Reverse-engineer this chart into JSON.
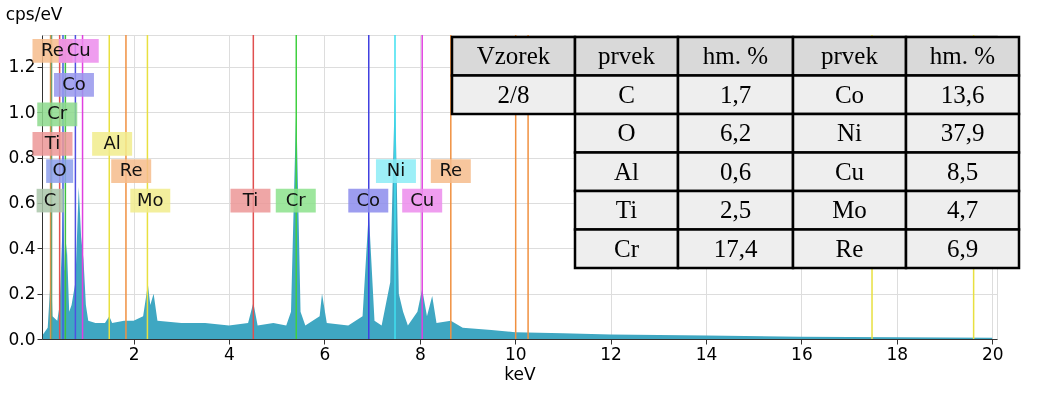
{
  "chart_data": {
    "type": "area",
    "xlabel": "keV",
    "ylabel": "cps/eV",
    "xlim": [
      0.08,
      20.1
    ],
    "ylim": [
      0,
      1.34
    ],
    "xticks": [
      2,
      4,
      6,
      8,
      10,
      12,
      14,
      16,
      18,
      20
    ],
    "yticks": [
      {
        "value": 0,
        "label": "0.0"
      },
      0.2,
      0.4,
      0.6,
      0.8,
      {
        "value": 1,
        "label": "1.0"
      },
      1.2
    ],
    "grid": true,
    "series": [
      {
        "color": "#3fa7c2",
        "x": [
          0.1,
          0.2,
          0.27,
          0.3,
          0.4,
          0.45,
          0.52,
          0.56,
          0.6,
          0.65,
          0.7,
          0.78,
          0.85,
          0.9,
          0.95,
          1.0,
          1.05,
          1.2,
          1.4,
          1.49,
          1.55,
          1.8,
          2.0,
          2.2,
          2.3,
          2.35,
          2.42,
          2.5,
          3.0,
          3.5,
          4.0,
          4.4,
          4.51,
          4.6,
          4.93,
          5.2,
          5.3,
          5.41,
          5.5,
          5.6,
          5.9,
          5.95,
          6.05,
          6.5,
          6.8,
          6.93,
          7.05,
          7.2,
          7.38,
          7.48,
          7.56,
          7.65,
          7.75,
          7.95,
          8.05,
          8.15,
          8.26,
          8.35,
          8.65,
          8.9,
          9.5,
          10,
          11,
          12,
          14,
          16,
          18,
          20
        ],
        "values": [
          0.02,
          0.05,
          0.3,
          0.1,
          0.08,
          0.15,
          0.55,
          0.3,
          0.42,
          0.12,
          0.15,
          0.25,
          0.67,
          0.45,
          0.35,
          0.15,
          0.08,
          0.07,
          0.07,
          0.1,
          0.07,
          0.08,
          0.08,
          0.1,
          0.24,
          0.15,
          0.2,
          0.08,
          0.07,
          0.07,
          0.06,
          0.07,
          0.16,
          0.06,
          0.07,
          0.06,
          0.12,
          1.03,
          0.12,
          0.06,
          0.1,
          0.2,
          0.07,
          0.06,
          0.1,
          0.56,
          0.08,
          0.06,
          0.25,
          1.12,
          0.2,
          0.12,
          0.06,
          0.12,
          0.22,
          0.1,
          0.19,
          0.07,
          0.08,
          0.05,
          0.04,
          0.03,
          0.025,
          0.02,
          0.015,
          0.01,
          0.008,
          0.005
        ]
      }
    ],
    "ref_lines": [
      {
        "axis": "x",
        "value": 0.26,
        "color": "#f09040"
      },
      {
        "axis": "x",
        "value": 0.93,
        "color": "#e040e0"
      },
      {
        "axis": "x",
        "value": 0.78,
        "color": "#5050e0"
      },
      {
        "axis": "x",
        "value": 0.57,
        "color": "#40c040"
      },
      {
        "axis": "x",
        "value": 0.45,
        "color": "#e05050"
      },
      {
        "axis": "x",
        "value": 0.52,
        "color": "#4060e0"
      },
      {
        "axis": "x",
        "value": 0.28,
        "color": "#70a070"
      },
      {
        "axis": "x",
        "value": 1.49,
        "color": "#e8e040"
      },
      {
        "axis": "x",
        "value": 1.84,
        "color": "#f09040"
      },
      {
        "axis": "x",
        "value": 2.29,
        "color": "#e8e040"
      },
      {
        "axis": "x",
        "value": 4.51,
        "color": "#e05050"
      },
      {
        "axis": "x",
        "value": 5.41,
        "color": "#40d040"
      },
      {
        "axis": "x",
        "value": 6.93,
        "color": "#4040e0"
      },
      {
        "axis": "x",
        "value": 7.48,
        "color": "#40e0f0"
      },
      {
        "axis": "x",
        "value": 8.05,
        "color": "#e040e0"
      },
      {
        "axis": "x",
        "value": 8.65,
        "color": "#f09040"
      },
      {
        "axis": "x",
        "value": 10.01,
        "color": "#f09040"
      },
      {
        "axis": "x",
        "value": 10.27,
        "color": "#f09040"
      },
      {
        "axis": "x",
        "value": 17.48,
        "color": "#e8e040"
      },
      {
        "axis": "x",
        "value": 19.61,
        "color": "#e8e040"
      }
    ],
    "annotations": [
      {
        "text": "Re",
        "x": 0.3,
        "y": 1.27
      },
      {
        "text": "Cu",
        "x": 0.85,
        "y": 1.27
      },
      {
        "text": "Co",
        "x": 0.75,
        "y": 1.12
      },
      {
        "text": "Cr",
        "x": 0.4,
        "y": 0.99
      },
      {
        "text": "Ti",
        "x": 0.3,
        "y": 0.86
      },
      {
        "text": "O",
        "x": 0.45,
        "y": 0.74
      },
      {
        "text": "C",
        "x": 0.25,
        "y": 0.61
      },
      {
        "text": "Al",
        "x": 1.55,
        "y": 0.86
      },
      {
        "text": "Re",
        "x": 1.95,
        "y": 0.74
      },
      {
        "text": "Mo",
        "x": 2.35,
        "y": 0.61
      },
      {
        "text": "Ti",
        "x": 4.45,
        "y": 0.61
      },
      {
        "text": "Cr",
        "x": 5.4,
        "y": 0.61
      },
      {
        "text": "Co",
        "x": 6.92,
        "y": 0.61
      },
      {
        "text": "Ni",
        "x": 7.5,
        "y": 0.74
      },
      {
        "text": "Cu",
        "x": 8.05,
        "y": 0.61
      },
      {
        "text": "Re",
        "x": 8.65,
        "y": 0.74
      },
      "Vzorek",
      "prvek",
      "hm. %",
      "prvek",
      "hm. %",
      "2/8",
      "C",
      "1,7",
      "Co",
      "13,6",
      "O",
      "6,2",
      "Ni",
      "37,9",
      "Al",
      "0,6",
      "Cu",
      "8,5",
      "Ti",
      "2,5",
      "Mo",
      "4,7",
      "Cr",
      "17,4",
      "Re",
      "6,9"
    ]
  }
}
